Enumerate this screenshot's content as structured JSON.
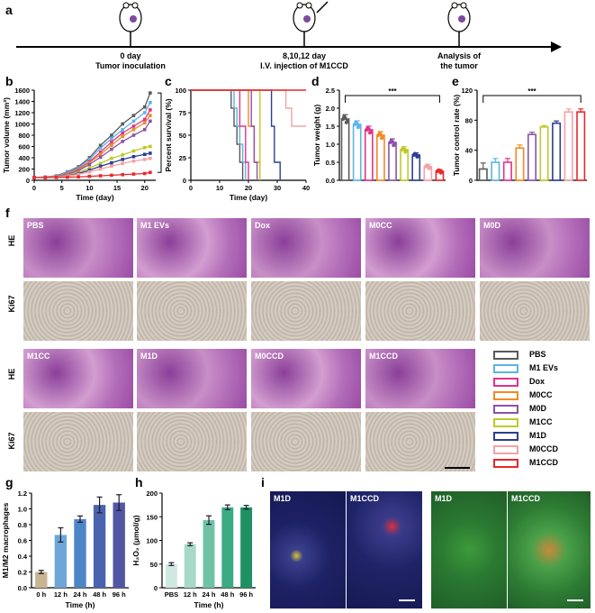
{
  "panel_letters": {
    "a": "a",
    "b": "b",
    "c": "c",
    "d": "d",
    "e": "e",
    "f": "f",
    "g": "g",
    "h": "h",
    "i": "i"
  },
  "timeline": {
    "events": [
      {
        "line1": "0 day",
        "line2": "Tumor inoculation"
      },
      {
        "line1": "8,10,12 day",
        "line2": "I.V. injection of M1CCD"
      },
      {
        "line1": "Analysis of",
        "line2": "the tumor"
      }
    ]
  },
  "colors": {
    "PBS": "#5a5a5a",
    "M1 EVs": "#5bb4e5",
    "Dox": "#e0338a",
    "M0CC": "#f08a24",
    "M0D": "#8d52a8",
    "M1CC": "#c0c92a",
    "M1D": "#2c3e94",
    "M0CCD": "#f2a3a8",
    "M1CCD": "#e8292b"
  },
  "groups": [
    "PBS",
    "M1 EVs",
    "Dox",
    "M0CC",
    "M0D",
    "M1CC",
    "M1D",
    "M0CCD",
    "M1CCD"
  ],
  "chart_data": [
    {
      "panel": "b",
      "type": "line",
      "xlabel": "Time (day)",
      "ylabel": "Tumor volume (mm³)",
      "xlim": [
        0,
        22
      ],
      "ylim": [
        0,
        1600
      ],
      "xticks": [
        0,
        5,
        10,
        15,
        20
      ],
      "yticks": [
        0,
        200,
        400,
        600,
        800,
        1000,
        1200,
        1400,
        1600
      ],
      "x": [
        0,
        2,
        4,
        6,
        8,
        10,
        12,
        14,
        16,
        18,
        20,
        21
      ],
      "series": [
        {
          "name": "PBS",
          "values": [
            50,
            60,
            80,
            150,
            240,
            400,
            620,
            800,
            1000,
            1150,
            1300,
            1550
          ]
        },
        {
          "name": "M1 EVs",
          "values": [
            50,
            58,
            75,
            140,
            220,
            370,
            570,
            740,
            900,
            1050,
            1200,
            1380
          ]
        },
        {
          "name": "Dox",
          "values": [
            50,
            55,
            70,
            120,
            200,
            330,
            500,
            680,
            840,
            960,
            1080,
            1250
          ]
        },
        {
          "name": "M0CC",
          "values": [
            50,
            55,
            68,
            115,
            190,
            310,
            460,
            620,
            780,
            900,
            1020,
            1150
          ]
        },
        {
          "name": "M0D",
          "values": [
            50,
            52,
            65,
            105,
            170,
            280,
            410,
            550,
            690,
            800,
            900,
            1050
          ]
        },
        {
          "name": "M1CC",
          "values": [
            50,
            52,
            62,
            90,
            140,
            220,
            300,
            390,
            450,
            520,
            580,
            600
          ]
        },
        {
          "name": "M1D",
          "values": [
            50,
            50,
            60,
            80,
            120,
            180,
            250,
            310,
            370,
            420,
            460,
            480
          ]
        },
        {
          "name": "M0CCD",
          "values": [
            50,
            50,
            58,
            75,
            105,
            150,
            200,
            250,
            300,
            340,
            370,
            390
          ]
        },
        {
          "name": "M1CCD",
          "values": [
            50,
            48,
            50,
            55,
            60,
            70,
            80,
            90,
            100,
            110,
            120,
            140
          ]
        }
      ],
      "annotation": "***"
    },
    {
      "panel": "c",
      "type": "line",
      "xlabel": "Time (day)",
      "ylabel": "Percent survival (%)",
      "xlim": [
        0,
        40
      ],
      "ylim": [
        0,
        100
      ],
      "xticks": [
        0,
        10,
        20,
        30,
        40
      ],
      "yticks": [
        0,
        25,
        50,
        75,
        100
      ],
      "series": [
        {
          "name": "PBS",
          "steps": [
            [
              0,
              100
            ],
            [
              14,
              100
            ],
            [
              14,
              80
            ],
            [
              15,
              80
            ],
            [
              15,
              60
            ],
            [
              16,
              60
            ],
            [
              16,
              40
            ],
            [
              17,
              40
            ],
            [
              17,
              20
            ],
            [
              18,
              20
            ],
            [
              18,
              0
            ]
          ]
        },
        {
          "name": "M1 EVs",
          "steps": [
            [
              0,
              100
            ],
            [
              15,
              100
            ],
            [
              15,
              80
            ],
            [
              16,
              80
            ],
            [
              16,
              60
            ],
            [
              17,
              60
            ],
            [
              17,
              40
            ],
            [
              18,
              40
            ],
            [
              18,
              20
            ],
            [
              19,
              20
            ],
            [
              19,
              0
            ]
          ]
        },
        {
          "name": "Dox",
          "steps": [
            [
              0,
              100
            ],
            [
              17,
              100
            ],
            [
              17,
              60
            ],
            [
              19,
              60
            ],
            [
              19,
              20
            ],
            [
              20,
              20
            ],
            [
              20,
              0
            ]
          ]
        },
        {
          "name": "M0CC",
          "steps": [
            [
              0,
              100
            ],
            [
              20,
              100
            ],
            [
              20,
              60
            ],
            [
              22,
              60
            ],
            [
              22,
              20
            ],
            [
              24,
              20
            ],
            [
              24,
              0
            ]
          ]
        },
        {
          "name": "M0D",
          "steps": [
            [
              0,
              100
            ],
            [
              21,
              100
            ],
            [
              21,
              60
            ],
            [
              22,
              60
            ],
            [
              22,
              20
            ],
            [
              23,
              20
            ],
            [
              23,
              0
            ]
          ]
        },
        {
          "name": "M1CC",
          "steps": [
            [
              0,
              100
            ],
            [
              24,
              100
            ],
            [
              24,
              0
            ]
          ]
        },
        {
          "name": "M1D",
          "steps": [
            [
              0,
              100
            ],
            [
              28,
              100
            ],
            [
              28,
              60
            ],
            [
              29,
              60
            ],
            [
              29,
              20
            ],
            [
              31,
              20
            ],
            [
              31,
              0
            ]
          ]
        },
        {
          "name": "M0CCD",
          "steps": [
            [
              0,
              100
            ],
            [
              33,
              100
            ],
            [
              33,
              80
            ],
            [
              35,
              80
            ],
            [
              35,
              60
            ],
            [
              40,
              60
            ]
          ]
        },
        {
          "name": "M1CCD",
          "steps": [
            [
              0,
              100
            ],
            [
              40,
              100
            ]
          ]
        }
      ]
    },
    {
      "panel": "d",
      "type": "bar",
      "ylabel": "Tumor weight (g)",
      "ylim": [
        0,
        2.5
      ],
      "yticks": [
        0.0,
        0.5,
        1.0,
        1.5,
        2.0,
        2.5
      ],
      "categories": [
        "PBS",
        "M1 EVs",
        "Dox",
        "M0CC",
        "M0D",
        "M1CC",
        "M1D",
        "M0CCD",
        "M1CCD"
      ],
      "values": [
        1.7,
        1.55,
        1.4,
        1.25,
        1.05,
        0.85,
        0.7,
        0.38,
        0.25
      ],
      "errors": [
        0.12,
        0.1,
        0.1,
        0.1,
        0.1,
        0.08,
        0.06,
        0.06,
        0.05
      ],
      "annotation": "***"
    },
    {
      "panel": "e",
      "type": "bar",
      "ylabel": "Tumor control rate (%)",
      "ylim": [
        0,
        120
      ],
      "yticks": [
        0,
        40,
        80,
        120
      ],
      "categories": [
        "PBS",
        "M1 EVs",
        "Dox",
        "M0CC",
        "M0D",
        "M1CC",
        "M1D",
        "M0CCD",
        "M1CCD"
      ],
      "values": [
        15,
        24,
        24,
        43,
        61,
        71,
        76,
        91,
        91
      ],
      "errors": [
        8,
        5,
        5,
        4,
        3,
        2,
        3,
        4,
        4
      ],
      "annotation": "***"
    },
    {
      "panel": "g",
      "type": "bar",
      "xlabel": "Time (h)",
      "ylabel": "M1/M2 macrophages",
      "ylim": [
        0,
        1.2
      ],
      "yticks": [
        0.0,
        0.2,
        0.4,
        0.6,
        0.8,
        1.0,
        1.2
      ],
      "categories": [
        "0 h",
        "12 h",
        "24 h",
        "48 h",
        "96 h"
      ],
      "values": [
        0.2,
        0.67,
        0.87,
        1.05,
        1.08
      ],
      "errors": [
        0.02,
        0.09,
        0.04,
        0.1,
        0.1
      ],
      "colors": [
        "#c9b592",
        "#6fa6d8",
        "#4d86c6",
        "#4a63b0",
        "#5157a3"
      ]
    },
    {
      "panel": "h",
      "type": "bar",
      "xlabel": "Time (h)",
      "ylabel": "H₂O₂ (μmol/g)",
      "ylim": [
        0,
        200
      ],
      "yticks": [
        0,
        50,
        100,
        150,
        200
      ],
      "categories": [
        "PBS",
        "12 h",
        "24 h",
        "48 h",
        "96 h"
      ],
      "values": [
        50,
        92,
        143,
        170,
        170
      ],
      "errors": [
        3,
        3,
        9,
        5,
        4
      ],
      "colors": [
        "#cfe9e1",
        "#a6d9c8",
        "#6fc3a4",
        "#3bab84",
        "#1f8f64"
      ]
    }
  ],
  "histology": {
    "row1": [
      {
        "name": "PBS"
      },
      {
        "name": "M1 EVs"
      },
      {
        "name": "Dox"
      },
      {
        "name": "M0CC"
      },
      {
        "name": "M0D"
      }
    ],
    "row2": [
      {
        "name": "M1CC"
      },
      {
        "name": "M1D"
      },
      {
        "name": "M0CCD"
      },
      {
        "name": "M1CCD"
      }
    ],
    "row_labels": {
      "he": "HE",
      "ki67": "Ki67"
    }
  },
  "fluorescence": [
    {
      "name": "M1D"
    },
    {
      "name": "M1CCD"
    },
    {
      "name": "M1D"
    },
    {
      "name": "M1CCD"
    }
  ]
}
